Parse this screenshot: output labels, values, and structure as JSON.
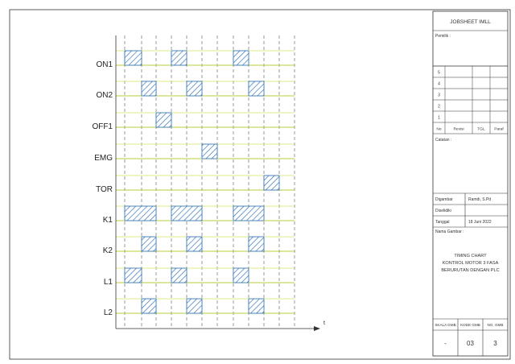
{
  "timing": {
    "signals": [
      "ON1",
      "ON2",
      "OFF1",
      "EMG",
      "TOR",
      "K1",
      "K2",
      "L1",
      "L2"
    ],
    "axis_label": "t"
  },
  "chart_data": {
    "type": "timing",
    "x_unit": "time steps (dashed grid columns 0-11)",
    "signals": [
      {
        "name": "ON1",
        "high": [
          [
            0,
            1
          ],
          [
            3,
            4
          ],
          [
            7,
            8
          ]
        ]
      },
      {
        "name": "ON2",
        "high": [
          [
            1,
            2
          ],
          [
            4,
            5
          ],
          [
            8,
            9
          ]
        ]
      },
      {
        "name": "OFF1",
        "high": [
          [
            2,
            3
          ]
        ]
      },
      {
        "name": "EMG",
        "high": [
          [
            5,
            6
          ]
        ]
      },
      {
        "name": "TOR",
        "high": [
          [
            9,
            10
          ]
        ]
      },
      {
        "name": "K1",
        "high": [
          [
            0,
            2
          ],
          [
            3,
            5
          ],
          [
            7,
            9
          ]
        ]
      },
      {
        "name": "K2",
        "high": [
          [
            1,
            2
          ],
          [
            4,
            5
          ],
          [
            8,
            9
          ]
        ]
      },
      {
        "name": "L1",
        "high": [
          [
            0,
            1
          ],
          [
            3,
            4
          ],
          [
            7,
            8
          ]
        ]
      },
      {
        "name": "L2",
        "high": [
          [
            1,
            2
          ],
          [
            4,
            5
          ],
          [
            8,
            9
          ]
        ]
      }
    ]
  },
  "title_block": {
    "title": "JOBSHEET IMLL",
    "owner_label": "Pemilik :",
    "revision_rows": [
      "5",
      "4",
      "3",
      "2",
      "1"
    ],
    "revision_headers": [
      "No",
      "Revisi",
      "TGL",
      "Paraf"
    ],
    "notes_label": "Catatan :",
    "drawn_label": "Digambar",
    "drawn_value": "Ramdi, S.Pd",
    "checked_label": "Diselidiki",
    "date_label": "Tanggal",
    "date_value": "18 Juni 2022",
    "drawing_name_label": "Nama Gambar :",
    "drawing_name_lines": [
      "TIMING CHART",
      "KONTROL MOTOR 3 FASA",
      "BERURUTAN DENGAN PLC"
    ],
    "footer_headers": [
      "SKALA GMB",
      "KODE GMB",
      "NO. GMB"
    ],
    "footer_values": [
      "-",
      "03",
      "3"
    ]
  }
}
